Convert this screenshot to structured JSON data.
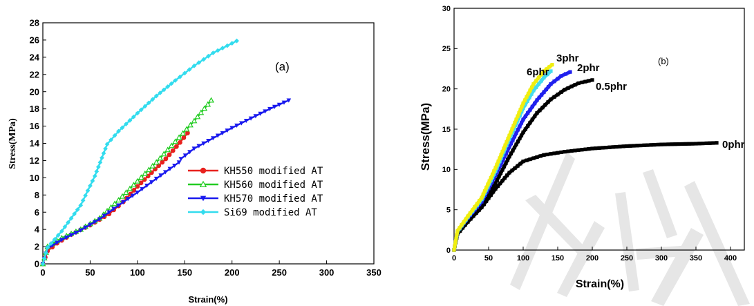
{
  "chart_data": [
    {
      "type": "line",
      "panel_label": "(a)",
      "xlabel": "Strain(%)",
      "ylabel": "Stress(MPa)",
      "xlim": [
        0,
        350
      ],
      "ylim": [
        0,
        28
      ],
      "x_ticks": [
        0,
        50,
        100,
        150,
        200,
        250,
        300,
        350
      ],
      "y_ticks": [
        0,
        2,
        4,
        6,
        8,
        10,
        12,
        14,
        16,
        18,
        20,
        22,
        24,
        26,
        28
      ],
      "grid": false,
      "legend_position": "center-right",
      "series": [
        {
          "name": "KH550 modified AT",
          "color": "#e8211e",
          "marker": "circle-filled",
          "x": [
            0,
            5,
            15,
            30,
            50,
            70,
            85,
            100,
            115,
            130,
            145,
            153
          ],
          "y": [
            0,
            1.5,
            2.4,
            3.4,
            4.5,
            5.8,
            7.2,
            9.0,
            10.6,
            12.2,
            14.1,
            15.2
          ]
        },
        {
          "name": "KH560 modified AT",
          "color": "#22cc22",
          "marker": "triangle-open",
          "x": [
            0,
            5,
            20,
            40,
            60,
            80,
            100,
            120,
            140,
            160,
            178
          ],
          "y": [
            0,
            2.0,
            3.0,
            4.0,
            5.3,
            7.4,
            9.6,
            11.8,
            14.2,
            16.6,
            19.0
          ]
        },
        {
          "name": "KH570 modified AT",
          "color": "#1a1aee",
          "marker": "triangle-down-filled",
          "x": [
            0,
            5,
            20,
            40,
            60,
            80,
            100,
            120,
            144,
            null,
            146,
            160,
            180,
            200,
            220,
            240,
            260
          ],
          "y": [
            0,
            1.8,
            2.8,
            3.9,
            5.2,
            6.8,
            8.3,
            9.9,
            11.8,
            null,
            12.2,
            13.4,
            14.6,
            15.8,
            16.9,
            18.0,
            19.0
          ]
        },
        {
          "name": "Si69 modified AT",
          "color": "#33dcee",
          "marker": "diamond-filled",
          "x": [
            0,
            5,
            20,
            40,
            55,
            68,
            80,
            100,
            120,
            140,
            160,
            180,
            205
          ],
          "y": [
            0,
            1.9,
            3.8,
            6.8,
            10.2,
            13.9,
            15.4,
            17.5,
            19.5,
            21.3,
            23.0,
            24.5,
            25.9
          ]
        }
      ]
    },
    {
      "type": "line",
      "panel_label": "(b)",
      "xlabel": "Strain(%)",
      "ylabel": "Stress(MPa)",
      "xlim": [
        0,
        420
      ],
      "ylim": [
        0,
        30
      ],
      "x_ticks": [
        0,
        50,
        100,
        150,
        200,
        250,
        300,
        350,
        400
      ],
      "y_ticks": [
        0,
        5,
        10,
        15,
        20,
        25,
        30
      ],
      "grid": false,
      "series": [
        {
          "name": "0phr",
          "color": "#000000",
          "x": [
            0,
            5,
            20,
            40,
            60,
            80,
            100,
            130,
            160,
            200,
            250,
            300,
            350,
            380
          ],
          "y": [
            0,
            2.0,
            3.5,
            5.3,
            7.6,
            9.6,
            11.0,
            11.8,
            12.2,
            12.6,
            12.9,
            13.1,
            13.2,
            13.3
          ]
        },
        {
          "name": "0.5phr",
          "color": "#000000",
          "x": [
            0,
            5,
            20,
            40,
            60,
            80,
            100,
            120,
            140,
            160,
            180,
            200
          ],
          "y": [
            0,
            2.2,
            3.8,
            5.6,
            8.3,
            11.6,
            14.6,
            17.0,
            18.7,
            19.9,
            20.7,
            21.1
          ]
        },
        {
          "name": "2phr",
          "color": "#2020ee",
          "x": [
            0,
            5,
            20,
            40,
            60,
            80,
            100,
            120,
            140,
            155,
            168
          ],
          "y": [
            0,
            2.3,
            4.0,
            6.0,
            9.3,
            12.8,
            16.2,
            18.6,
            20.6,
            21.6,
            22.1
          ]
        },
        {
          "name": "3phr",
          "color": "#f0ee10",
          "x": [
            0,
            5,
            20,
            40,
            60,
            80,
            100,
            115,
            130,
            142
          ],
          "y": [
            0,
            2.4,
            4.2,
            6.5,
            10.2,
            14.2,
            18.2,
            20.6,
            22.2,
            23.0
          ]
        },
        {
          "name": "6phr",
          "color": "#44dcee",
          "x": [
            0,
            5,
            20,
            40,
            60,
            80,
            100,
            115,
            130,
            140
          ],
          "y": [
            0,
            2.3,
            4.1,
            6.3,
            9.8,
            13.8,
            17.6,
            19.8,
            21.4,
            22.2
          ]
        }
      ],
      "series_label_positions": {
        "3phr": [
          148,
          23.4
        ],
        "6phr": [
          105,
          21.7
        ],
        "2phr": [
          178,
          22.2
        ],
        "0.5phr": [
          205,
          19.9
        ],
        "0phr": [
          388,
          12.7
        ]
      }
    }
  ]
}
